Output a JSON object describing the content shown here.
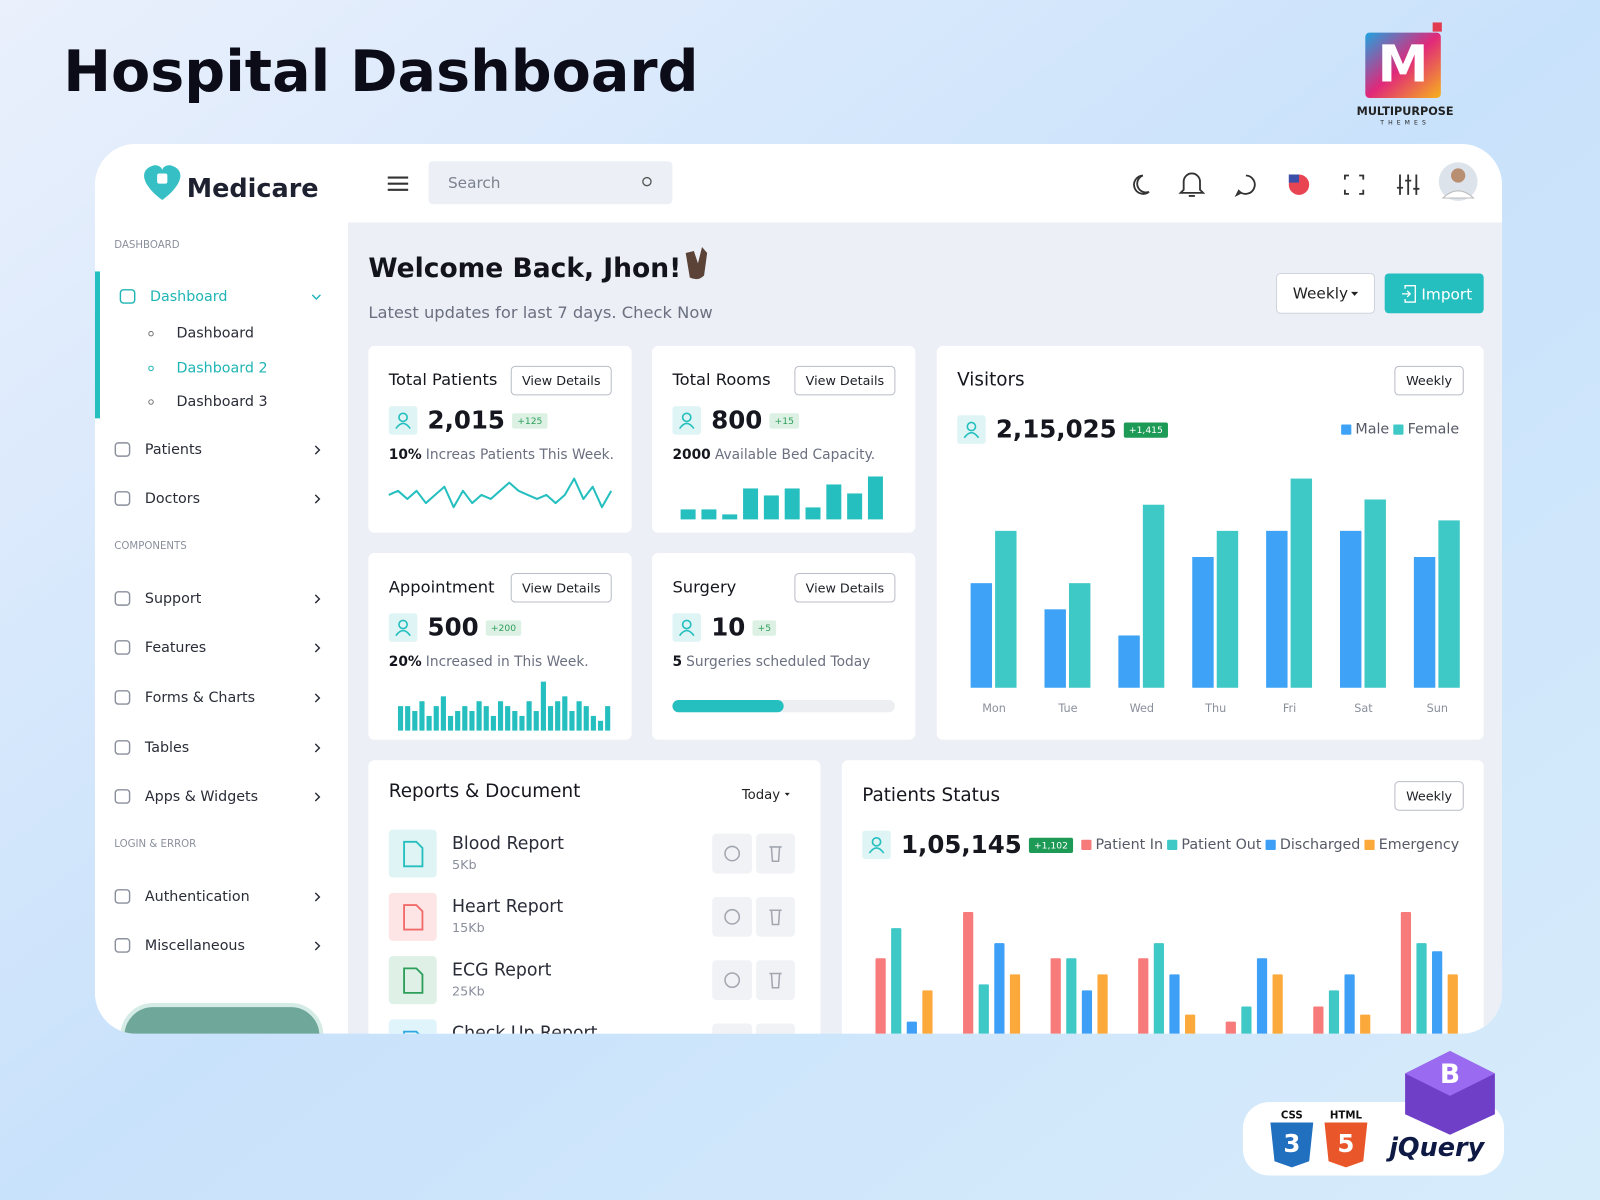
{
  "page": {
    "title": "Hospital Dashboard",
    "brand": {
      "name": "MULTIPURPOSE",
      "tagline": "THEMES"
    }
  },
  "header": {
    "logo": "Medicare",
    "search": "Search"
  },
  "sidebar": {
    "sections": [
      {
        "title": "DASHBOARD",
        "items": [
          {
            "label": "Dashboard",
            "children": [
              "Dashboard",
              "Dashboard 2",
              "Dashboard 3"
            ]
          },
          {
            "label": "Patients"
          },
          {
            "label": "Doctors"
          }
        ]
      },
      {
        "title": "COMPONENTS",
        "items": [
          {
            "label": "Support"
          },
          {
            "label": "Features"
          },
          {
            "label": "Forms & Charts"
          },
          {
            "label": "Tables"
          },
          {
            "label": "Apps & Widgets"
          }
        ]
      },
      {
        "title": "LOGIN & ERROR",
        "items": [
          {
            "label": "Authentication"
          },
          {
            "label": "Miscellaneous"
          }
        ]
      }
    ]
  },
  "welcome": {
    "title": "Welcome Back, Jhon!",
    "subtitle": "Latest updates for last 7 days. Check Now",
    "period": "Weekly",
    "action": "Import"
  },
  "cards": [
    {
      "title": "Total Patients",
      "button": "View Details",
      "value": "2,015",
      "change": "+125",
      "highlight": "10%",
      "note": "Increas Patients This Week.",
      "chart": {
        "type": "line",
        "values": [
          4,
          5,
          3,
          5,
          2,
          4,
          6,
          1,
          5,
          2,
          4,
          3,
          5,
          7,
          5,
          4,
          3,
          4,
          2,
          4,
          8,
          3,
          6,
          1,
          5
        ],
        "ylim": [
          0,
          9
        ]
      }
    },
    {
      "title": "Total Rooms",
      "button": "View Details",
      "value": "800",
      "change": "+15",
      "highlight": "2000",
      "note": "Available Bed Capacity.",
      "chart": {
        "type": "bar",
        "values": [
          10,
          10,
          5,
          31,
          24,
          31,
          12,
          35,
          26,
          43
        ],
        "ylim": [
          0,
          45
        ]
      }
    },
    {
      "title": "Appointment",
      "button": "View Details",
      "value": "500",
      "change": "+200",
      "highlight": "20%",
      "note": "Increased in This Week.",
      "chart": {
        "type": "bar",
        "values": [
          5,
          5,
          4,
          6,
          3,
          5,
          7,
          3,
          4,
          5,
          4,
          6,
          5,
          3,
          6,
          5,
          4,
          3,
          6,
          4,
          10,
          5,
          6,
          7,
          4,
          6,
          5,
          3,
          2,
          5
        ],
        "ylim": [
          0,
          10
        ]
      }
    },
    {
      "title": "Surgery",
      "button": "View Details",
      "value": "10",
      "change": "+5",
      "highlight": "5",
      "note": "Surgeries scheduled Today",
      "chart": {
        "type": "progress",
        "value": 50,
        "xlim": [
          0,
          100
        ]
      }
    }
  ],
  "visitors": {
    "title": "Visitors",
    "period": "Weekly",
    "total": "2,15,025",
    "change": "+1,415",
    "chart": {
      "type": "bar",
      "categories": [
        "Mon",
        "Tue",
        "Wed",
        "Thu",
        "Fri",
        "Sat",
        "Sun"
      ],
      "series": [
        {
          "name": "Male",
          "color": "#3ea3f6",
          "values": [
            40,
            30,
            20,
            50,
            60,
            60,
            50
          ]
        },
        {
          "name": "Female",
          "color": "#3ec8c6",
          "values": [
            60,
            40,
            70,
            60,
            80,
            72,
            64
          ]
        }
      ],
      "ylim": [
        0,
        80
      ]
    }
  },
  "reports": {
    "title": "Reports & Document",
    "period": "Today",
    "items": [
      {
        "name": "Blood Report",
        "size": "5Kb"
      },
      {
        "name": "Heart Report",
        "size": "15Kb"
      },
      {
        "name": "ECG Report",
        "size": "25Kb"
      },
      {
        "name": "Check Up Report"
      }
    ]
  },
  "patients_status": {
    "title": "Patients Status",
    "period": "Weekly",
    "total": "1,05,145",
    "change": "+1,102",
    "chart": {
      "type": "bar",
      "series": [
        {
          "name": "Patient In",
          "color": "#f77b7a",
          "values": [
            76,
            122,
            76,
            76,
            13,
            28,
            122
          ]
        },
        {
          "name": "Patient Out",
          "color": "#3ec8c6",
          "values": [
            106,
            50,
            76,
            91,
            28,
            44,
            91
          ]
        },
        {
          "name": "Discharged",
          "color": "#3d9ff5",
          "values": [
            13,
            91,
            44,
            60,
            76,
            60,
            83
          ]
        },
        {
          "name": "Emergency",
          "color": "#fba93a",
          "values": [
            44,
            60,
            60,
            20,
            60,
            20,
            60
          ]
        }
      ],
      "ylim": [
        0,
        140
      ]
    }
  },
  "badges": [
    "CSS",
    "HTML",
    "jQuery"
  ]
}
